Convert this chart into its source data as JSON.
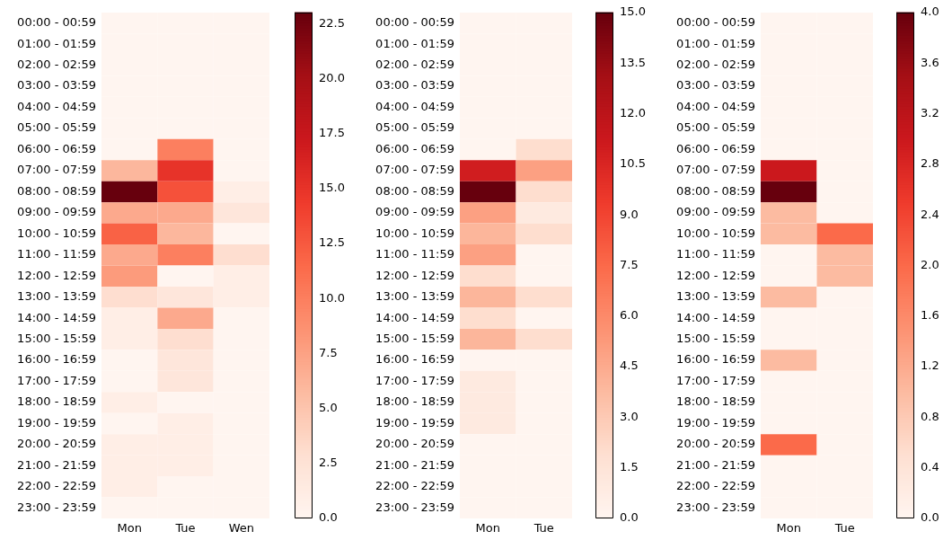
{
  "chart_data": [
    {
      "type": "heatmap",
      "categories": [
        "Mon",
        "Tue",
        "Wen"
      ],
      "y_categories": [
        "00:00 - 00:59",
        "01:00 - 01:59",
        "02:00 - 02:59",
        "03:00 - 03:59",
        "04:00 - 04:59",
        "05:00 - 05:59",
        "06:00 - 06:59",
        "07:00 - 07:59",
        "08:00 - 08:59",
        "09:00 - 09:59",
        "10:00 - 10:59",
        "11:00 - 11:59",
        "12:00 - 12:59",
        "13:00 - 13:59",
        "14:00 - 14:59",
        "15:00 - 15:59",
        "16:00 - 16:59",
        "17:00 - 17:59",
        "18:00 - 18:59",
        "19:00 - 19:59",
        "20:00 - 20:59",
        "21:00 - 21:59",
        "22:00 - 22:59",
        "23:00 - 23:59"
      ],
      "cells": [
        [
          0,
          0,
          0
        ],
        [
          0,
          0,
          0
        ],
        [
          0,
          0,
          0
        ],
        [
          0,
          0,
          0
        ],
        [
          0,
          0,
          0
        ],
        [
          0,
          0,
          0
        ],
        [
          0,
          10,
          0
        ],
        [
          6,
          15,
          0
        ],
        [
          23,
          13,
          1
        ],
        [
          7,
          7,
          2
        ],
        [
          12,
          6,
          0
        ],
        [
          7,
          10,
          3
        ],
        [
          8,
          0,
          1
        ],
        [
          3,
          2,
          1
        ],
        [
          1,
          7,
          0
        ],
        [
          1,
          3,
          0
        ],
        [
          0,
          2,
          0
        ],
        [
          0,
          2,
          0
        ],
        [
          1,
          0,
          0
        ],
        [
          0,
          1,
          0
        ],
        [
          1,
          1,
          0
        ],
        [
          1,
          1,
          0
        ],
        [
          1,
          0,
          0
        ],
        [
          0,
          0,
          0
        ]
      ],
      "clim": [
        0,
        23
      ],
      "cticks": [
        {
          "value": 0,
          "label": "0.0"
        },
        2.5,
        {
          "value": 5,
          "label": "5.0"
        },
        7.5,
        {
          "value": 10,
          "label": "10.0"
        },
        12.5,
        {
          "value": 15,
          "label": "15.0"
        },
        17.5,
        {
          "value": 20,
          "label": "20.0"
        },
        22.5
      ]
    },
    {
      "type": "heatmap",
      "categories": [
        "Mon",
        "Tue"
      ],
      "y_categories": [
        "00:00 - 00:59",
        "01:00 - 01:59",
        "02:00 - 02:59",
        "03:00 - 03:59",
        "04:00 - 04:59",
        "05:00 - 05:59",
        "06:00 - 06:59",
        "07:00 - 07:59",
        "08:00 - 08:59",
        "09:00 - 09:59",
        "10:00 - 10:59",
        "11:00 - 11:59",
        "12:00 - 12:59",
        "13:00 - 13:59",
        "14:00 - 14:59",
        "15:00 - 15:59",
        "16:00 - 16:59",
        "17:00 - 17:59",
        "18:00 - 18:59",
        "19:00 - 19:59",
        "20:00 - 20:59",
        "21:00 - 21:59",
        "22:00 - 22:59",
        "23:00 - 23:59"
      ],
      "cells": [
        [
          0,
          0
        ],
        [
          0,
          0
        ],
        [
          0,
          0
        ],
        [
          0,
          0
        ],
        [
          0,
          0
        ],
        [
          0,
          0
        ],
        [
          0,
          2
        ],
        [
          11,
          5
        ],
        [
          15,
          2
        ],
        [
          5,
          1
        ],
        [
          4,
          2
        ],
        [
          5,
          0
        ],
        [
          2,
          0
        ],
        [
          4,
          2
        ],
        [
          2,
          0
        ],
        [
          4,
          2
        ],
        [
          0,
          0
        ],
        [
          1,
          0
        ],
        [
          1,
          0
        ],
        [
          1,
          0
        ],
        [
          0,
          0
        ],
        [
          0,
          0
        ],
        [
          0,
          0
        ],
        [
          0,
          0
        ]
      ],
      "clim": [
        0,
        15
      ],
      "cticks": [
        {
          "value": 0,
          "label": "0.0"
        },
        1.5,
        {
          "value": 3,
          "label": "3.0"
        },
        4.5,
        {
          "value": 6,
          "label": "6.0"
        },
        7.5,
        {
          "value": 9,
          "label": "9.0"
        },
        10.5,
        {
          "value": 12,
          "label": "12.0"
        },
        13.5,
        {
          "value": 15,
          "label": "15.0"
        }
      ]
    },
    {
      "type": "heatmap",
      "categories": [
        "Mon",
        "Tue"
      ],
      "y_categories": [
        "00:00 - 00:59",
        "01:00 - 01:59",
        "02:00 - 02:59",
        "03:00 - 03:59",
        "04:00 - 04:59",
        "05:00 - 05:59",
        "06:00 - 06:59",
        "07:00 - 07:59",
        "08:00 - 08:59",
        "09:00 - 09:59",
        "10:00 - 10:59",
        "11:00 - 11:59",
        "12:00 - 12:59",
        "13:00 - 13:59",
        "14:00 - 14:59",
        "15:00 - 15:59",
        "16:00 - 16:59",
        "17:00 - 17:59",
        "18:00 - 18:59",
        "19:00 - 19:59",
        "20:00 - 20:59",
        "21:00 - 21:59",
        "22:00 - 22:59",
        "23:00 - 23:59"
      ],
      "cells": [
        [
          0,
          0
        ],
        [
          0,
          0
        ],
        [
          0,
          0
        ],
        [
          0,
          0
        ],
        [
          0,
          0
        ],
        [
          0,
          0
        ],
        [
          0,
          0
        ],
        [
          3,
          0
        ],
        [
          4,
          0
        ],
        [
          1,
          0
        ],
        [
          1,
          2
        ],
        [
          0,
          1
        ],
        [
          0,
          1
        ],
        [
          1,
          0
        ],
        [
          0,
          0
        ],
        [
          0,
          0
        ],
        [
          1,
          0
        ],
        [
          0,
          0
        ],
        [
          0,
          0
        ],
        [
          0,
          0
        ],
        [
          2,
          0
        ],
        [
          0,
          0
        ],
        [
          0,
          0
        ],
        [
          0,
          0
        ]
      ],
      "clim": [
        0,
        4
      ],
      "cticks": [
        {
          "value": 0,
          "label": "0.0"
        },
        0.4,
        0.8,
        1.2,
        1.6,
        {
          "value": 2,
          "label": "2.0"
        },
        2.4,
        2.8,
        3.2,
        3.6,
        {
          "value": 4,
          "label": "4.0"
        }
      ]
    }
  ]
}
